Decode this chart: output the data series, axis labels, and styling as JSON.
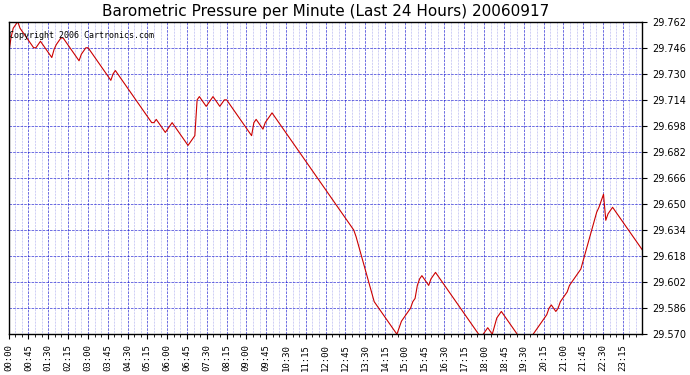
{
  "title": "Barometric Pressure per Minute (Last 24 Hours) 20060917",
  "copyright_text": "Copyright 2006 Cartronics.com",
  "line_color": "#cc0000",
  "background_color": "#ffffff",
  "plot_bg_color": "#ffffff",
  "grid_color": "#0000cc",
  "axis_color": "#000000",
  "text_color": "#000000",
  "ylim": [
    29.57,
    29.762
  ],
  "yticks": [
    29.57,
    29.586,
    29.602,
    29.618,
    29.634,
    29.65,
    29.666,
    29.682,
    29.698,
    29.714,
    29.73,
    29.746,
    29.762
  ],
  "xtick_labels": [
    "00:00",
    "00:45",
    "01:30",
    "02:15",
    "03:00",
    "03:45",
    "04:30",
    "05:15",
    "06:00",
    "06:45",
    "07:30",
    "08:15",
    "09:00",
    "09:45",
    "10:30",
    "11:15",
    "12:00",
    "12:45",
    "13:30",
    "14:15",
    "15:00",
    "15:45",
    "16:30",
    "17:15",
    "18:00",
    "18:45",
    "19:30",
    "20:15",
    "21:00",
    "21:45",
    "22:30",
    "23:15"
  ],
  "pressure_data": [
    29.742,
    29.752,
    29.758,
    29.76,
    29.762,
    29.758,
    29.756,
    29.754,
    29.752,
    29.75,
    29.748,
    29.746,
    29.746,
    29.748,
    29.75,
    29.748,
    29.746,
    29.744,
    29.742,
    29.74,
    29.745,
    29.748,
    29.75,
    29.752,
    29.752,
    29.75,
    29.748,
    29.746,
    29.744,
    29.742,
    29.74,
    29.738,
    29.742,
    29.744,
    29.746,
    29.746,
    29.744,
    29.742,
    29.74,
    29.738,
    29.736,
    29.734,
    29.732,
    29.73,
    29.728,
    29.726,
    29.73,
    29.732,
    29.73,
    29.728,
    29.726,
    29.724,
    29.722,
    29.72,
    29.718,
    29.716,
    29.714,
    29.712,
    29.71,
    29.708,
    29.706,
    29.704,
    29.702,
    29.7,
    29.7,
    29.702,
    29.7,
    29.698,
    29.696,
    29.694,
    29.696,
    29.698,
    29.7,
    29.698,
    29.696,
    29.694,
    29.692,
    29.69,
    29.688,
    29.686,
    29.688,
    29.69,
    29.692,
    29.714,
    29.716,
    29.714,
    29.712,
    29.71,
    29.712,
    29.714,
    29.716,
    29.714,
    29.712,
    29.71,
    29.712,
    29.714,
    29.714,
    29.712,
    29.71,
    29.708,
    29.706,
    29.704,
    29.702,
    29.7,
    29.698,
    29.696,
    29.694,
    29.692,
    29.7,
    29.702,
    29.7,
    29.698,
    29.696,
    29.7,
    29.702,
    29.704,
    29.706,
    29.704,
    29.702,
    29.7,
    29.698,
    29.696,
    29.694,
    29.692,
    29.69,
    29.688,
    29.686,
    29.684,
    29.682,
    29.68,
    29.678,
    29.676,
    29.674,
    29.672,
    29.67,
    29.668,
    29.666,
    29.664,
    29.662,
    29.66,
    29.658,
    29.656,
    29.654,
    29.652,
    29.65,
    29.648,
    29.646,
    29.644,
    29.642,
    29.64,
    29.638,
    29.636,
    29.634,
    29.63,
    29.625,
    29.62,
    29.615,
    29.61,
    29.605,
    29.6,
    29.595,
    29.59,
    29.588,
    29.586,
    29.584,
    29.582,
    29.58,
    29.578,
    29.576,
    29.574,
    29.572,
    29.57,
    29.574,
    29.578,
    29.58,
    29.582,
    29.584,
    29.586,
    29.59,
    29.592,
    29.6,
    29.604,
    29.606,
    29.604,
    29.602,
    29.6,
    29.604,
    29.606,
    29.608,
    29.606,
    29.604,
    29.602,
    29.6,
    29.598,
    29.596,
    29.594,
    29.592,
    29.59,
    29.588,
    29.586,
    29.584,
    29.582,
    29.58,
    29.578,
    29.576,
    29.574,
    29.572,
    29.57,
    29.568,
    29.57,
    29.572,
    29.574,
    29.572,
    29.57,
    29.575,
    29.58,
    29.582,
    29.584,
    29.582,
    29.58,
    29.578,
    29.576,
    29.574,
    29.572,
    29.57,
    29.568,
    29.566,
    29.564,
    29.56,
    29.558,
    29.566,
    29.57,
    29.572,
    29.574,
    29.576,
    29.578,
    29.58,
    29.582,
    29.586,
    29.588,
    29.586,
    29.584,
    29.586,
    29.59,
    29.592,
    29.594,
    29.596,
    29.6,
    29.602,
    29.604,
    29.606,
    29.608,
    29.61,
    29.615,
    29.62,
    29.625,
    29.63,
    29.635,
    29.64,
    29.645,
    29.648,
    29.652,
    29.656,
    29.64,
    29.644,
    29.646,
    29.648,
    29.646,
    29.644,
    29.642,
    29.64,
    29.638,
    29.636,
    29.634,
    29.632,
    29.63,
    29.628,
    29.626,
    29.624,
    29.622
  ]
}
